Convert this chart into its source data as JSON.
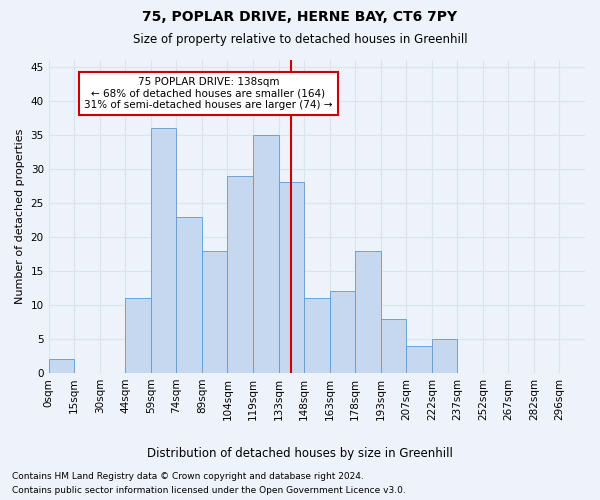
{
  "title1": "75, POPLAR DRIVE, HERNE BAY, CT6 7PY",
  "title2": "Size of property relative to detached houses in Greenhill",
  "xlabel": "Distribution of detached houses by size in Greenhill",
  "ylabel": "Number of detached properties",
  "footnote1": "Contains HM Land Registry data © Crown copyright and database right 2024.",
  "footnote2": "Contains public sector information licensed under the Open Government Licence v3.0.",
  "bar_labels": [
    "0sqm",
    "15sqm",
    "30sqm",
    "44sqm",
    "59sqm",
    "74sqm",
    "89sqm",
    "104sqm",
    "119sqm",
    "133sqm",
    "148sqm",
    "163sqm",
    "178sqm",
    "193sqm",
    "207sqm",
    "222sqm",
    "237sqm",
    "252sqm",
    "267sqm",
    "282sqm",
    "296sqm"
  ],
  "bar_values": [
    2,
    0,
    0,
    11,
    36,
    23,
    18,
    29,
    35,
    28,
    11,
    12,
    18,
    8,
    4,
    5,
    0,
    0,
    0,
    0,
    0
  ],
  "bar_color": "#c5d8f0",
  "bar_edge_color": "#5b9bd5",
  "grid_color": "#d8e4f0",
  "annotation_box_text": "75 POPLAR DRIVE: 138sqm\n← 68% of detached houses are smaller (164)\n31% of semi-detached houses are larger (74) →",
  "vline_x": 9.5,
  "vline_color": "#cc0000",
  "ylim": [
    0,
    46
  ],
  "yticks": [
    0,
    5,
    10,
    15,
    20,
    25,
    30,
    35,
    40,
    45
  ],
  "background_color": "#eef2fa",
  "title_fontsize": 10,
  "subtitle_fontsize": 8.5,
  "ylabel_fontsize": 8,
  "tick_fontsize": 7.5,
  "annot_fontsize": 7.5,
  "footnote_fontsize": 6.5
}
